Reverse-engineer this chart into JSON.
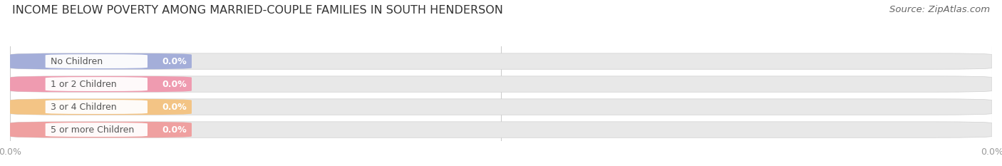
{
  "title": "INCOME BELOW POVERTY AMONG MARRIED-COUPLE FAMILIES IN SOUTH HENDERSON",
  "source": "Source: ZipAtlas.com",
  "categories": [
    "No Children",
    "1 or 2 Children",
    "3 or 4 Children",
    "5 or more Children"
  ],
  "values": [
    0.0,
    0.0,
    0.0,
    0.0
  ],
  "bar_colors": [
    "#9da8d8",
    "#f093aa",
    "#f5c07a",
    "#f09898"
  ],
  "bar_bg_color": "#e8e8e8",
  "bar_inner_color": "#f5f5f5",
  "background_color": "#ffffff",
  "title_fontsize": 11.5,
  "source_fontsize": 9.5,
  "label_fontsize": 9,
  "value_fontsize": 9,
  "tick_fontsize": 9,
  "tick_color": "#999999",
  "label_color": "#555555",
  "title_color": "#333333",
  "source_color": "#666666"
}
